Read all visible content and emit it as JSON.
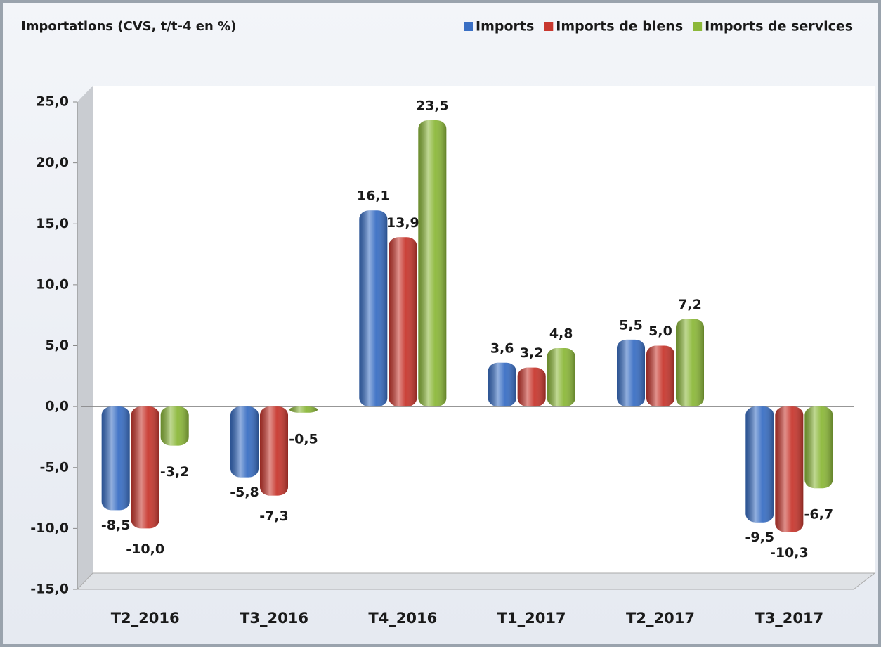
{
  "chart_data": {
    "type": "bar",
    "title": "Importations (CVS, t/t-4 en %)",
    "categories": [
      "T2_2016",
      "T3_2016",
      "T4_2016",
      "T1_2017",
      "T2_2017",
      "T3_2017"
    ],
    "series": [
      {
        "name": "Imports",
        "color": "#3a6fc4",
        "values": [
          -8.5,
          -5.8,
          16.1,
          3.6,
          5.5,
          -9.5
        ],
        "value_labels": [
          "-8,5",
          "-5,8",
          "16,1",
          "3,6",
          "5,5",
          "-9,5"
        ]
      },
      {
        "name": "Imports de biens",
        "color": "#c8382f",
        "values": [
          -10.0,
          -7.3,
          13.9,
          3.2,
          5.0,
          -10.3
        ],
        "value_labels": [
          "-10,0",
          "-7,3",
          "13,9",
          "3,2",
          "5,0",
          "-10,3"
        ]
      },
      {
        "name": "Imports de services",
        "color": "#8cb83a",
        "values": [
          -3.2,
          -0.5,
          23.5,
          4.8,
          7.2,
          -6.7
        ],
        "value_labels": [
          "-3,2",
          "-0,5",
          "23,5",
          "4,8",
          "7,2",
          "-6,7"
        ]
      }
    ],
    "ylim": [
      -15,
      25
    ],
    "yticks": [
      {
        "value": -15,
        "label": "-15,0"
      },
      {
        "value": -10,
        "label": "-10,0"
      },
      {
        "value": -5,
        "label": "-5,0"
      },
      {
        "value": 0,
        "label": "0,0"
      },
      {
        "value": 5,
        "label": "5,0"
      },
      {
        "value": 10,
        "label": "10,0"
      },
      {
        "value": 15,
        "label": "15,0"
      },
      {
        "value": 20,
        "label": "20,0"
      },
      {
        "value": 25,
        "label": "25,0"
      }
    ],
    "legend": "top-right"
  }
}
